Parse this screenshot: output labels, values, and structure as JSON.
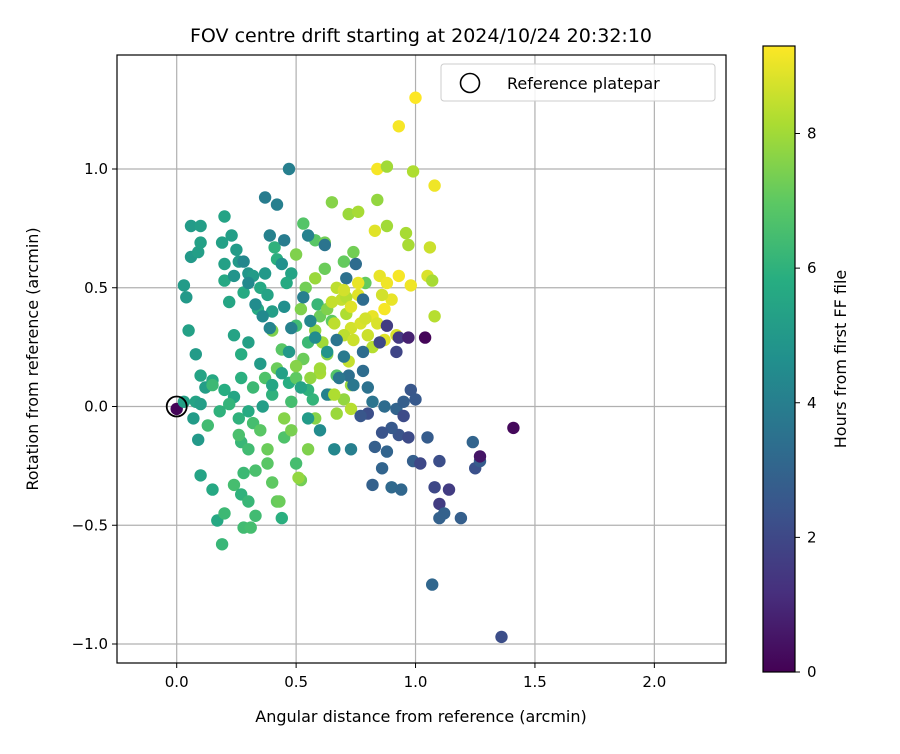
{
  "chart_data": {
    "type": "scatter",
    "title": "FOV centre drift starting at 2024/10/24 20:32:10",
    "xlabel": "Angular distance from reference (arcmin)",
    "ylabel": "Rotation from reference (arcmin)",
    "xlim": [
      -0.25,
      2.3
    ],
    "ylim": [
      -1.08,
      1.48
    ],
    "xticks": [
      "0.0",
      "0.5",
      "1.0",
      "1.5",
      "2.0"
    ],
    "yticks": [
      "−1.0",
      "−0.5",
      "0.0",
      "0.5",
      "1.0"
    ],
    "xtick_values": [
      0,
      0.5,
      1.0,
      1.5,
      2.0
    ],
    "ytick_values": [
      -1.0,
      -0.5,
      0,
      0.5,
      1.0
    ],
    "grid": true,
    "legend": {
      "placement": "top-right",
      "entries": [
        "Reference platepar"
      ]
    },
    "reference_point": {
      "x": 0.0,
      "y": 0.0
    },
    "colorbar": {
      "label": "Hours from first FF file",
      "range": [
        0,
        9.3
      ],
      "colormap": "viridis",
      "ticks": [
        "0",
        "2",
        "4",
        "6",
        "8"
      ],
      "tick_values": [
        0,
        2,
        4,
        6,
        8
      ]
    },
    "points": [
      [
        0.0,
        -0.01,
        0.1
      ],
      [
        0.03,
        0.02,
        5.3
      ],
      [
        0.08,
        0.02,
        5.4
      ],
      [
        0.1,
        0.01,
        5.2
      ],
      [
        0.07,
        -0.05,
        5.1
      ],
      [
        0.09,
        -0.14,
        5.0
      ],
      [
        0.1,
        -0.29,
        5.4
      ],
      [
        0.15,
        -0.35,
        5.6
      ],
      [
        0.17,
        -0.48,
        5.6
      ],
      [
        0.19,
        -0.58,
        6.2
      ],
      [
        0.2,
        -0.45,
        6.3
      ],
      [
        0.04,
        0.46,
        5.0
      ],
      [
        0.03,
        0.51,
        5.1
      ],
      [
        0.05,
        0.32,
        5.3
      ],
      [
        0.08,
        0.22,
        5.1
      ],
      [
        0.1,
        0.13,
        5.4
      ],
      [
        0.12,
        0.08,
        5.2
      ],
      [
        0.06,
        0.63,
        5.0
      ],
      [
        0.09,
        0.65,
        5.2
      ],
      [
        0.1,
        0.69,
        5.3
      ],
      [
        0.06,
        0.76,
        5.1
      ],
      [
        0.1,
        0.76,
        5.2
      ],
      [
        0.2,
        0.8,
        5.4
      ],
      [
        0.23,
        0.72,
        5.2
      ],
      [
        0.19,
        0.69,
        5.3
      ],
      [
        0.2,
        0.6,
        5.3
      ],
      [
        0.25,
        0.66,
        5.1
      ],
      [
        0.2,
        0.53,
        5.6
      ],
      [
        0.26,
        0.61,
        5.0
      ],
      [
        0.24,
        0.55,
        4.8
      ],
      [
        0.3,
        0.56,
        4.9
      ],
      [
        0.28,
        0.48,
        5.7
      ],
      [
        0.22,
        0.44,
        5.5
      ],
      [
        0.24,
        0.3,
        5.4
      ],
      [
        0.27,
        0.22,
        5.8
      ],
      [
        0.3,
        0.27,
        5.3
      ],
      [
        0.15,
        0.11,
        5.6
      ],
      [
        0.2,
        0.07,
        5.8
      ],
      [
        0.24,
        0.04,
        5.5
      ],
      [
        0.26,
        -0.05,
        6.0
      ],
      [
        0.27,
        -0.15,
        6.2
      ],
      [
        0.28,
        -0.28,
        6.3
      ],
      [
        0.24,
        -0.33,
        6.5
      ],
      [
        0.27,
        -0.37,
        6.0
      ],
      [
        0.3,
        -0.4,
        6.2
      ],
      [
        0.33,
        -0.46,
        6.4
      ],
      [
        0.28,
        -0.51,
        6.4
      ],
      [
        0.31,
        -0.51,
        6.5
      ],
      [
        0.3,
        -0.18,
        6.4
      ],
      [
        0.32,
        -0.07,
        6.5
      ],
      [
        0.33,
        -0.27,
        6.6
      ],
      [
        0.38,
        -0.24,
        6.9
      ],
      [
        0.4,
        -0.32,
        7.0
      ],
      [
        0.42,
        -0.4,
        7.1
      ],
      [
        0.44,
        -0.47,
        5.9
      ],
      [
        0.43,
        -0.4,
        7.2
      ],
      [
        0.45,
        -0.13,
        6.7
      ],
      [
        0.5,
        -0.24,
        6.5
      ],
      [
        0.52,
        -0.31,
        7.3
      ],
      [
        0.51,
        -0.3,
        7.8
      ],
      [
        0.55,
        -0.18,
        7.5
      ],
      [
        0.32,
        0.55,
        5.1
      ],
      [
        0.35,
        0.5,
        5.6
      ],
      [
        0.37,
        0.56,
        5.0
      ],
      [
        0.38,
        0.47,
        5.4
      ],
      [
        0.34,
        0.41,
        5.7
      ],
      [
        0.4,
        0.4,
        5.2
      ],
      [
        0.4,
        0.32,
        7.5
      ],
      [
        0.44,
        0.24,
        6.9
      ],
      [
        0.42,
        0.16,
        7.2
      ],
      [
        0.37,
        0.12,
        6.7
      ],
      [
        0.32,
        0.08,
        6.3
      ],
      [
        0.4,
        0.05,
        6.0
      ],
      [
        0.47,
        0.1,
        5.8
      ],
      [
        0.48,
        0.02,
        6.5
      ],
      [
        0.5,
        0.12,
        7.0
      ],
      [
        0.53,
        0.2,
        7.2
      ],
      [
        0.55,
        0.27,
        6.3
      ],
      [
        0.5,
        0.34,
        6.4
      ],
      [
        0.52,
        0.41,
        7.5
      ],
      [
        0.54,
        0.5,
        7.3
      ],
      [
        0.58,
        0.54,
        7.9
      ],
      [
        0.58,
        0.32,
        7.8
      ],
      [
        0.61,
        0.27,
        8.0
      ],
      [
        0.63,
        0.22,
        7.6
      ],
      [
        0.6,
        0.14,
        8.1
      ],
      [
        0.64,
        0.05,
        7.4
      ],
      [
        0.67,
        -0.03,
        7.9
      ],
      [
        0.58,
        -0.05,
        7.6
      ],
      [
        0.57,
        0.03,
        6.1
      ],
      [
        0.55,
        0.07,
        6.0
      ],
      [
        0.59,
        0.43,
        6.2
      ],
      [
        0.6,
        0.38,
        7.2
      ],
      [
        0.63,
        0.41,
        7.5
      ],
      [
        0.65,
        0.36,
        7.0
      ],
      [
        0.67,
        0.5,
        8.4
      ],
      [
        0.69,
        0.45,
        8.5
      ],
      [
        0.71,
        0.39,
        8.2
      ],
      [
        0.73,
        0.33,
        8.7
      ],
      [
        0.7,
        0.3,
        8.4
      ],
      [
        0.74,
        0.28,
        8.6
      ],
      [
        0.77,
        0.35,
        8.8
      ],
      [
        0.8,
        0.3,
        8.6
      ],
      [
        0.82,
        0.38,
        9.0
      ],
      [
        0.84,
        0.35,
        8.8
      ],
      [
        0.87,
        0.28,
        8.9
      ],
      [
        0.82,
        0.25,
        8.3
      ],
      [
        0.72,
        0.19,
        8.5
      ],
      [
        0.73,
        0.09,
        7.9
      ],
      [
        0.7,
        0.03,
        7.8
      ],
      [
        0.73,
        -0.01,
        8.3
      ],
      [
        0.67,
        0.13,
        6.8
      ],
      [
        0.62,
        0.58,
        7.2
      ],
      [
        0.7,
        0.61,
        7.1
      ],
      [
        0.74,
        0.65,
        7.3
      ],
      [
        0.79,
        0.52,
        7.1
      ],
      [
        0.76,
        0.47,
        8.9
      ],
      [
        0.85,
        0.55,
        9.0
      ],
      [
        0.88,
        0.52,
        9.1
      ],
      [
        0.9,
        0.45,
        9.0
      ],
      [
        0.93,
        0.55,
        9.2
      ],
      [
        0.98,
        0.51,
        9.1
      ],
      [
        1.05,
        0.55,
        8.8
      ],
      [
        1.07,
        0.53,
        8.1
      ],
      [
        0.86,
        0.47,
        8.7
      ],
      [
        0.92,
        0.3,
        8.8
      ],
      [
        0.87,
        0.41,
        9.2
      ],
      [
        1.08,
        0.38,
        8.3
      ],
      [
        0.83,
        0.74,
        8.9
      ],
      [
        0.88,
        0.76,
        8.0
      ],
      [
        0.96,
        0.73,
        8.1
      ],
      [
        0.97,
        0.68,
        8.1
      ],
      [
        1.06,
        0.67,
        8.6
      ],
      [
        0.72,
        0.81,
        7.9
      ],
      [
        0.76,
        0.82,
        8.1
      ],
      [
        0.65,
        0.86,
        7.6
      ],
      [
        0.84,
        0.87,
        7.8
      ],
      [
        0.84,
        1.0,
        9.2
      ],
      [
        0.88,
        1.01,
        8.0
      ],
      [
        0.99,
        0.99,
        8.2
      ],
      [
        1.08,
        0.93,
        9.1
      ],
      [
        0.93,
        1.18,
        9.2
      ],
      [
        1.0,
        1.3,
        9.3
      ],
      [
        0.53,
        0.77,
        6.8
      ],
      [
        0.58,
        0.7,
        6.9
      ],
      [
        0.62,
        0.69,
        7.3
      ],
      [
        0.5,
        0.64,
        7.5
      ],
      [
        0.41,
        0.67,
        6.0
      ],
      [
        0.42,
        0.62,
        5.9
      ],
      [
        0.48,
        0.56,
        5.4
      ],
      [
        0.44,
        0.6,
        4.7
      ],
      [
        0.46,
        0.52,
        5.7
      ],
      [
        0.39,
        0.72,
        4.1
      ],
      [
        0.45,
        0.7,
        3.9
      ],
      [
        0.55,
        0.72,
        4.1
      ],
      [
        0.62,
        0.68,
        3.6
      ],
      [
        0.37,
        0.88,
        3.9
      ],
      [
        0.42,
        0.85,
        4.0
      ],
      [
        0.47,
        1.0,
        4.0
      ],
      [
        0.28,
        0.61,
        4.3
      ],
      [
        0.3,
        0.52,
        4.4
      ],
      [
        0.33,
        0.43,
        4.5
      ],
      [
        0.36,
        0.38,
        4.4
      ],
      [
        0.39,
        0.33,
        4.2
      ],
      [
        0.45,
        0.42,
        4.6
      ],
      [
        0.48,
        0.33,
        4.1
      ],
      [
        0.53,
        0.46,
        4.0
      ],
      [
        0.56,
        0.36,
        4.3
      ],
      [
        0.58,
        0.29,
        4.5
      ],
      [
        0.63,
        0.23,
        4.8
      ],
      [
        0.67,
        0.28,
        3.6
      ],
      [
        0.7,
        0.21,
        3.8
      ],
      [
        0.72,
        0.13,
        3.4
      ],
      [
        0.74,
        0.09,
        3.7
      ],
      [
        0.78,
        0.15,
        3.3
      ],
      [
        0.8,
        0.08,
        3.5
      ],
      [
        0.82,
        0.02,
        3.6
      ],
      [
        0.87,
        0.0,
        3.3
      ],
      [
        0.92,
        -0.01,
        3.0
      ],
      [
        0.95,
        0.02,
        2.8
      ],
      [
        0.98,
        0.07,
        2.5
      ],
      [
        1.0,
        0.03,
        2.6
      ],
      [
        0.95,
        -0.04,
        2.1
      ],
      [
        0.93,
        -0.12,
        2.4
      ],
      [
        0.9,
        -0.09,
        2.6
      ],
      [
        0.86,
        -0.11,
        2.4
      ],
      [
        0.83,
        -0.17,
        2.8
      ],
      [
        0.8,
        -0.03,
        2.2
      ],
      [
        0.77,
        -0.04,
        2.5
      ],
      [
        0.82,
        -0.33,
        2.9
      ],
      [
        0.86,
        -0.26,
        3.0
      ],
      [
        0.88,
        -0.19,
        3.0
      ],
      [
        0.9,
        -0.34,
        3.2
      ],
      [
        0.94,
        -0.35,
        3.1
      ],
      [
        0.97,
        -0.13,
        2.1
      ],
      [
        0.99,
        -0.23,
        2.8
      ],
      [
        1.02,
        -0.24,
        2.0
      ],
      [
        1.05,
        -0.13,
        2.7
      ],
      [
        1.08,
        -0.34,
        2.0
      ],
      [
        1.1,
        -0.23,
        2.2
      ],
      [
        1.1,
        -0.41,
        1.6
      ],
      [
        1.12,
        -0.45,
        2.9
      ],
      [
        1.1,
        -0.47,
        2.9
      ],
      [
        1.14,
        -0.35,
        1.6
      ],
      [
        1.19,
        -0.47,
        2.8
      ],
      [
        1.24,
        -0.15,
        3.0
      ],
      [
        1.25,
        -0.26,
        2.3
      ],
      [
        1.27,
        -0.23,
        2.7
      ],
      [
        1.27,
        -0.21,
        0.5
      ],
      [
        1.41,
        -0.09,
        0.2
      ],
      [
        1.07,
        -0.75,
        3.1
      ],
      [
        1.36,
        -0.97,
        2.2
      ],
      [
        0.93,
        0.29,
        1.5
      ],
      [
        0.97,
        0.29,
        0.8
      ],
      [
        1.04,
        0.29,
        0.1
      ],
      [
        0.92,
        0.23,
        1.9
      ],
      [
        0.88,
        0.34,
        1.6
      ],
      [
        0.85,
        0.27,
        2.0
      ],
      [
        0.78,
        0.45,
        3.3
      ],
      [
        0.75,
        0.6,
        3.3
      ],
      [
        0.71,
        0.54,
        3.5
      ],
      [
        0.78,
        0.23,
        3.3
      ],
      [
        0.68,
        0.12,
        3.7
      ],
      [
        0.63,
        0.05,
        4.1
      ],
      [
        0.66,
        -0.18,
        4.3
      ],
      [
        0.73,
        -0.18,
        4.0
      ],
      [
        0.6,
        -0.1,
        4.5
      ],
      [
        0.55,
        -0.05,
        5.1
      ],
      [
        0.52,
        0.08,
        5.4
      ],
      [
        0.47,
        0.23,
        5.0
      ],
      [
        0.44,
        0.14,
        5.3
      ],
      [
        0.4,
        0.09,
        5.5
      ],
      [
        0.35,
        0.18,
        5.1
      ],
      [
        0.36,
        0.0,
        5.2
      ],
      [
        0.3,
        -0.02,
        5.7
      ],
      [
        0.27,
        0.12,
        5.9
      ],
      [
        0.22,
        0.01,
        6.1
      ],
      [
        0.18,
        -0.02,
        6.0
      ],
      [
        0.15,
        0.09,
        6.3
      ],
      [
        0.13,
        -0.08,
        6.4
      ],
      [
        0.26,
        -0.12,
        6.6
      ],
      [
        0.35,
        -0.1,
        6.9
      ],
      [
        0.38,
        -0.18,
        7.2
      ],
      [
        0.45,
        -0.05,
        7.6
      ],
      [
        0.48,
        -0.1,
        7.4
      ],
      [
        0.5,
        0.17,
        7.6
      ],
      [
        0.56,
        0.12,
        7.8
      ],
      [
        0.6,
        0.16,
        8.0
      ],
      [
        0.66,
        0.05,
        8.2
      ],
      [
        0.71,
        0.46,
        8.3
      ],
      [
        0.66,
        0.35,
        8.4
      ],
      [
        0.65,
        0.44,
        8.5
      ],
      [
        0.7,
        0.49,
        8.7
      ],
      [
        0.73,
        0.42,
        8.9
      ],
      [
        0.76,
        0.52,
        9.0
      ],
      [
        0.79,
        0.37,
        8.7
      ]
    ]
  }
}
